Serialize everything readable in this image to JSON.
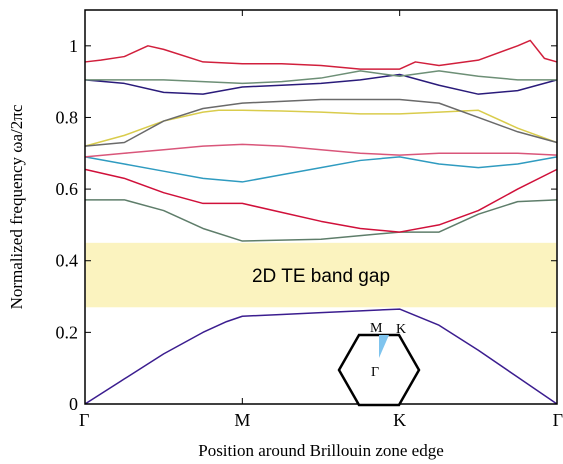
{
  "chart_data": {
    "type": "line",
    "xlabel": "Position around Brillouin zone edge",
    "ylabel": "Normalized frequency ωa/2πc",
    "xlim": [
      0,
      3
    ],
    "ylim": [
      0,
      1.1
    ],
    "x_ticks": [
      {
        "value": 0,
        "label": "Γ"
      },
      {
        "value": 1,
        "label": "M"
      },
      {
        "value": 2,
        "label": "K"
      },
      {
        "value": 3,
        "label": "Γ"
      }
    ],
    "y_ticks": [
      {
        "value": 0,
        "label": "0"
      },
      {
        "value": 0.2,
        "label": "0.2"
      },
      {
        "value": 0.4,
        "label": "0.4"
      },
      {
        "value": 0.6,
        "label": "0.6"
      },
      {
        "value": 0.8,
        "label": "0.8"
      },
      {
        "value": 1.0,
        "label": "1"
      }
    ],
    "grid": false,
    "band_gap": {
      "label": "2D TE band gap",
      "from": 0.27,
      "to": 0.45,
      "color": "#fbf3bf"
    },
    "inset": {
      "labels": {
        "m": "M",
        "k": "K",
        "gamma": "Γ"
      },
      "wedge_color": "#7fc4ee"
    },
    "series": [
      {
        "color": "#3b1d8f",
        "x": [
          0,
          0.25,
          0.5,
          0.75,
          0.9,
          1,
          1.25,
          1.5,
          1.75,
          2,
          2.25,
          2.5,
          2.75,
          3
        ],
        "y": [
          0,
          0.07,
          0.14,
          0.2,
          0.23,
          0.245,
          0.25,
          0.255,
          0.26,
          0.265,
          0.22,
          0.15,
          0.075,
          0
        ]
      },
      {
        "color": "#5e7d6a",
        "x": [
          0,
          0.25,
          0.5,
          0.75,
          1,
          1.5,
          1.75,
          2,
          2.1,
          2.25,
          2.5,
          2.75,
          3
        ],
        "y": [
          0.57,
          0.57,
          0.54,
          0.49,
          0.455,
          0.46,
          0.47,
          0.48,
          0.48,
          0.48,
          0.53,
          0.565,
          0.57
        ]
      },
      {
        "color": "#d0103a",
        "x": [
          0,
          0.25,
          0.5,
          0.75,
          1,
          1.25,
          1.5,
          1.75,
          2,
          2.25,
          2.5,
          2.75,
          3
        ],
        "y": [
          0.655,
          0.63,
          0.59,
          0.56,
          0.56,
          0.535,
          0.51,
          0.49,
          0.48,
          0.5,
          0.54,
          0.6,
          0.655
        ]
      },
      {
        "color": "#2f9bc0",
        "x": [
          0,
          0.25,
          0.5,
          0.75,
          1,
          1.25,
          1.5,
          1.75,
          2,
          2.25,
          2.5,
          2.75,
          3
        ],
        "y": [
          0.69,
          0.67,
          0.65,
          0.63,
          0.62,
          0.64,
          0.66,
          0.68,
          0.69,
          0.67,
          0.66,
          0.67,
          0.69
        ]
      },
      {
        "color": "#d9567a",
        "x": [
          0,
          0.25,
          0.5,
          0.75,
          1,
          1.25,
          1.5,
          1.75,
          2,
          2.25,
          2.5,
          2.75,
          3
        ],
        "y": [
          0.69,
          0.7,
          0.71,
          0.72,
          0.725,
          0.72,
          0.71,
          0.7,
          0.695,
          0.7,
          0.7,
          0.7,
          0.695
        ]
      },
      {
        "color": "#d9cc4c",
        "x": [
          0,
          0.25,
          0.5,
          0.75,
          0.85,
          1,
          1.25,
          1.5,
          1.75,
          2,
          2.25,
          2.5,
          2.75,
          3
        ],
        "y": [
          0.72,
          0.75,
          0.79,
          0.815,
          0.82,
          0.82,
          0.818,
          0.815,
          0.81,
          0.81,
          0.815,
          0.82,
          0.77,
          0.73
        ]
      },
      {
        "color": "#6a6a6a",
        "x": [
          0,
          0.25,
          0.5,
          0.75,
          1,
          1.25,
          1.5,
          1.75,
          2,
          2.25,
          2.5,
          2.75,
          3
        ],
        "y": [
          0.72,
          0.73,
          0.79,
          0.825,
          0.84,
          0.845,
          0.85,
          0.85,
          0.85,
          0.84,
          0.8,
          0.76,
          0.73
        ]
      },
      {
        "color": "#2a1b7a",
        "x": [
          0,
          0.25,
          0.5,
          0.75,
          1,
          1.25,
          1.5,
          1.75,
          2,
          2.25,
          2.5,
          2.75,
          3
        ],
        "y": [
          0.905,
          0.895,
          0.87,
          0.865,
          0.885,
          0.89,
          0.895,
          0.905,
          0.92,
          0.89,
          0.865,
          0.875,
          0.905
        ]
      },
      {
        "color": "#6d8f76",
        "x": [
          0,
          0.25,
          0.5,
          0.75,
          1,
          1.25,
          1.5,
          1.75,
          2,
          2.25,
          2.5,
          2.75,
          3
        ],
        "y": [
          0.905,
          0.905,
          0.905,
          0.9,
          0.895,
          0.9,
          0.91,
          0.93,
          0.915,
          0.93,
          0.915,
          0.905,
          0.905
        ]
      },
      {
        "color": "#d11f3c",
        "x": [
          0,
          0.1,
          0.25,
          0.4,
          0.5,
          0.75,
          1,
          1.25,
          1.5,
          1.75,
          2,
          2.1,
          2.25,
          2.5,
          2.75,
          2.83,
          2.92,
          3
        ],
        "y": [
          0.955,
          0.96,
          0.97,
          1.0,
          0.99,
          0.955,
          0.95,
          0.95,
          0.945,
          0.935,
          0.935,
          0.955,
          0.945,
          0.96,
          1.0,
          1.015,
          0.965,
          0.955
        ]
      }
    ]
  }
}
